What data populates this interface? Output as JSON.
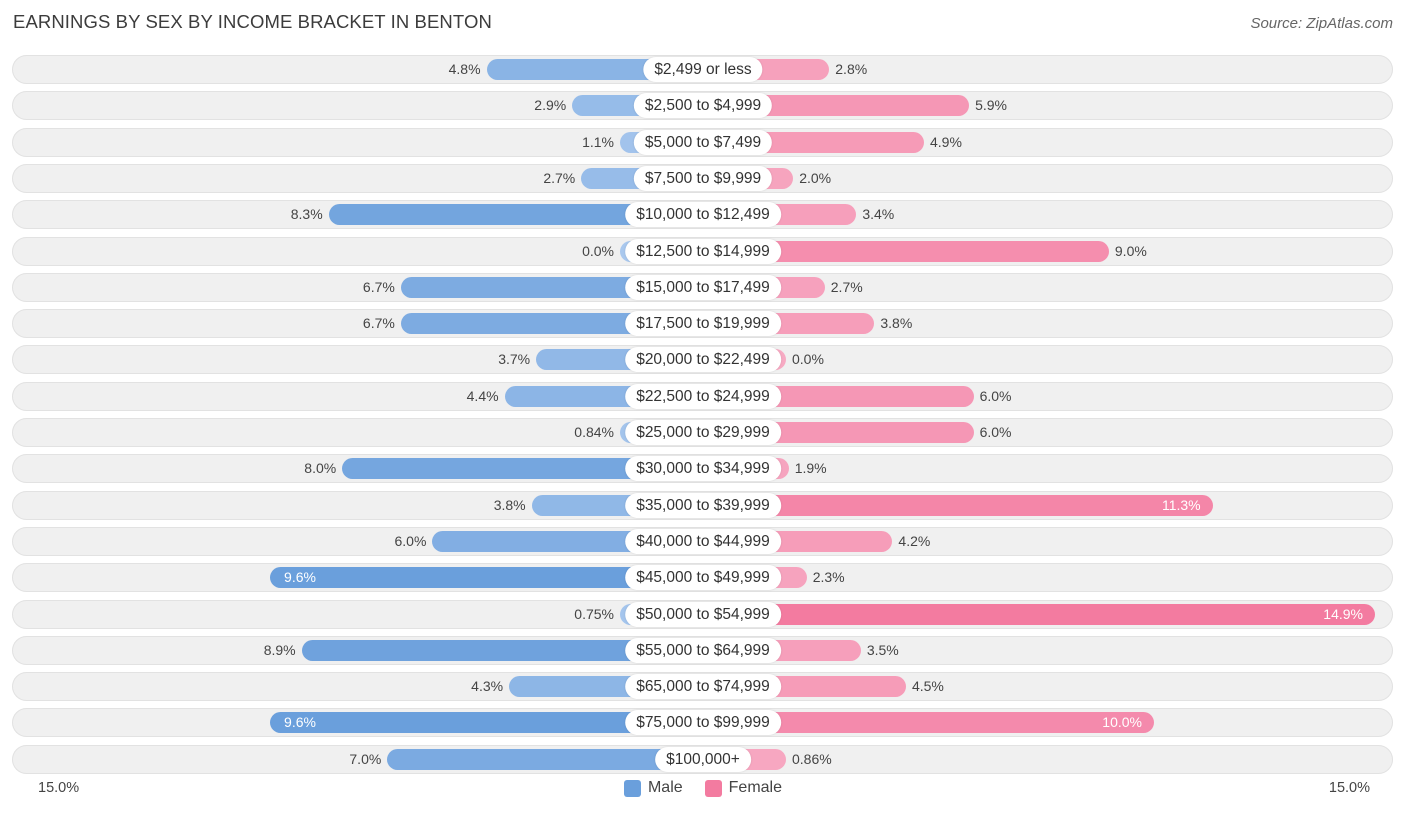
{
  "header": {
    "title": "EARNINGS BY SEX BY INCOME BRACKET IN BENTON",
    "source": "Source: ZipAtlas.com"
  },
  "colors": {
    "male": "#6a9fdc",
    "female": "#f37ba0",
    "male_light": "#a9c8ee",
    "female_light": "#f7aac3"
  },
  "legend": {
    "male_label": "Male",
    "female_label": "Female"
  },
  "axis": {
    "left_label": "15.0%",
    "right_label": "15.0%"
  },
  "chart_data": {
    "type": "bar",
    "orientation": "horizontal-diverging",
    "title": "EARNINGS BY SEX BY INCOME BRACKET IN BENTON",
    "xlim": [
      -15.0,
      15.0
    ],
    "categories": [
      "$2,499 or less",
      "$2,500 to $4,999",
      "$5,000 to $7,499",
      "$7,500 to $9,999",
      "$10,000 to $12,499",
      "$12,500 to $14,999",
      "$15,000 to $17,499",
      "$17,500 to $19,999",
      "$20,000 to $22,499",
      "$22,500 to $24,999",
      "$25,000 to $29,999",
      "$30,000 to $34,999",
      "$35,000 to $39,999",
      "$40,000 to $44,999",
      "$45,000 to $49,999",
      "$50,000 to $54,999",
      "$55,000 to $64,999",
      "$65,000 to $74,999",
      "$75,000 to $99,999",
      "$100,000+"
    ],
    "series": [
      {
        "name": "Male",
        "values": [
          4.8,
          2.9,
          1.1,
          2.7,
          8.3,
          0.0,
          6.7,
          6.7,
          3.7,
          4.4,
          0.84,
          8.0,
          3.8,
          6.0,
          9.6,
          0.75,
          8.9,
          4.3,
          9.6,
          7.0
        ],
        "labels": [
          "4.8%",
          "2.9%",
          "1.1%",
          "2.7%",
          "8.3%",
          "0.0%",
          "6.7%",
          "6.7%",
          "3.7%",
          "4.4%",
          "0.84%",
          "8.0%",
          "3.8%",
          "6.0%",
          "9.6%",
          "0.75%",
          "8.9%",
          "4.3%",
          "9.6%",
          "7.0%"
        ]
      },
      {
        "name": "Female",
        "values": [
          2.8,
          5.9,
          4.9,
          2.0,
          3.4,
          9.0,
          2.7,
          3.8,
          0.0,
          6.0,
          6.0,
          1.9,
          11.3,
          4.2,
          2.3,
          14.9,
          3.5,
          4.5,
          10.0,
          0.86
        ],
        "labels": [
          "2.8%",
          "5.9%",
          "4.9%",
          "2.0%",
          "3.4%",
          "9.0%",
          "2.7%",
          "3.8%",
          "0.0%",
          "6.0%",
          "6.0%",
          "1.9%",
          "11.3%",
          "4.2%",
          "2.3%",
          "14.9%",
          "3.5%",
          "4.5%",
          "10.0%",
          "0.86%"
        ]
      }
    ]
  }
}
